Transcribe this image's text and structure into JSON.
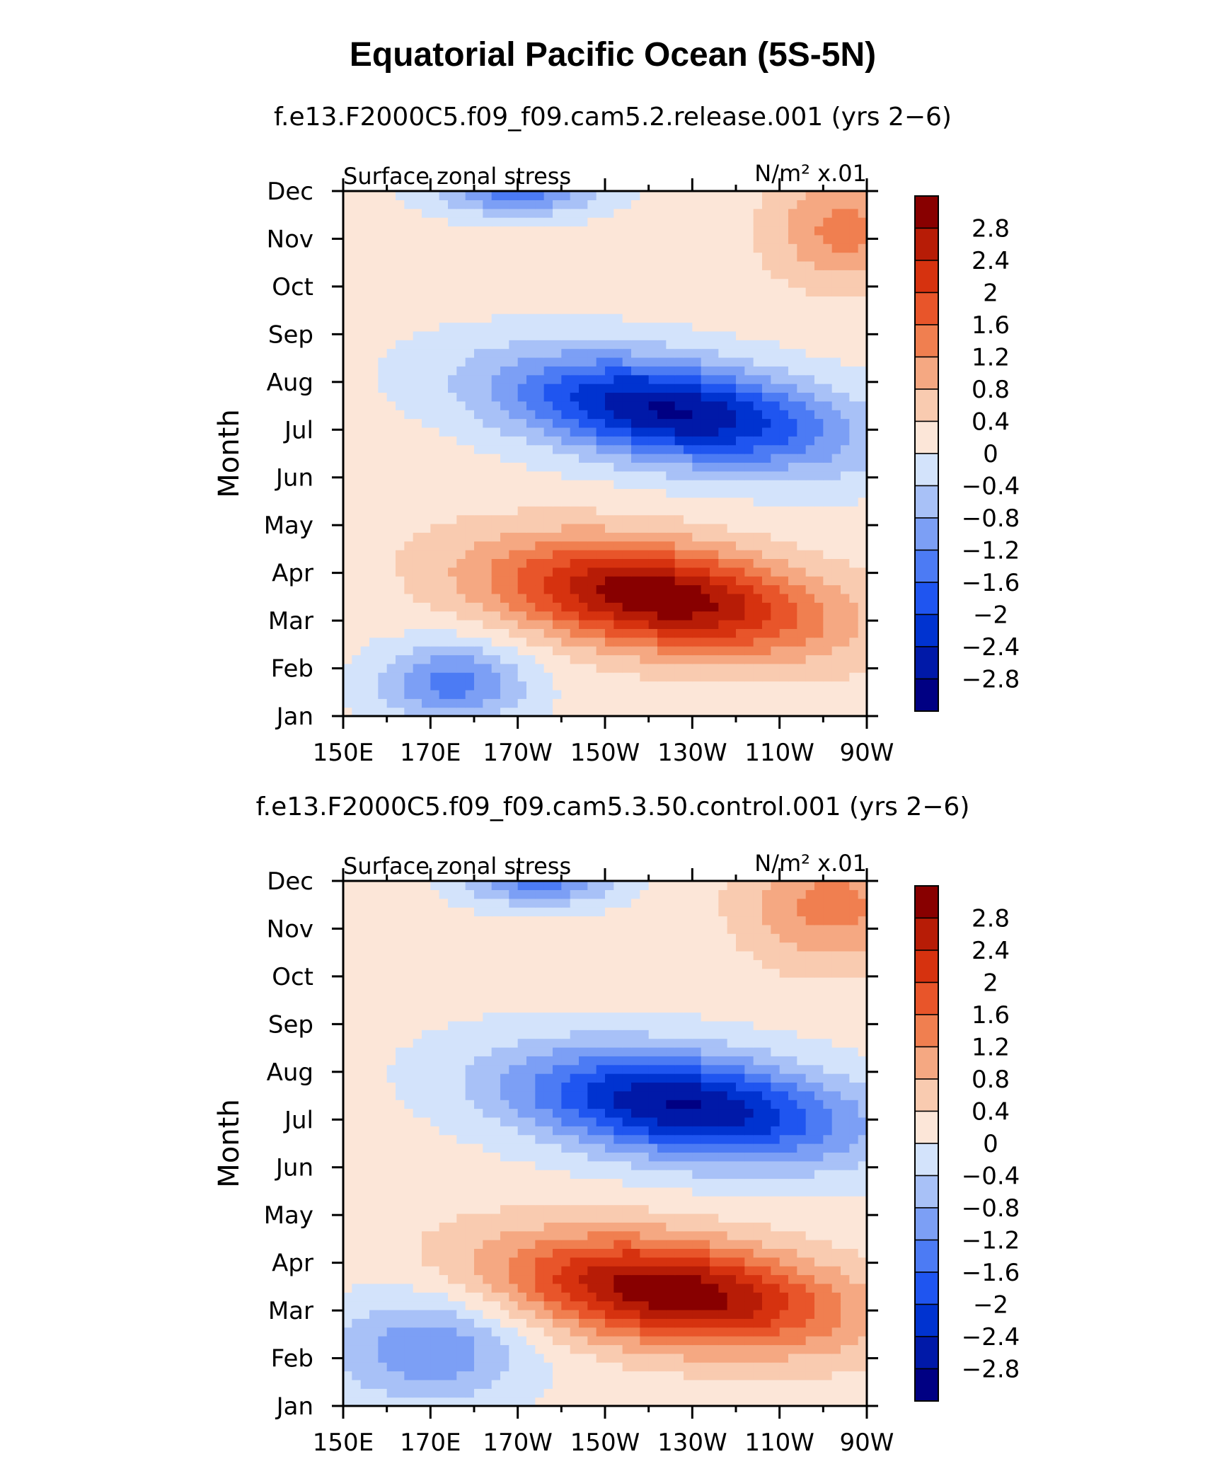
{
  "figure": {
    "title": "Equatorial Pacific Ocean (5S-5N)"
  },
  "chart_data": [
    {
      "type": "heatmap",
      "subtitle": "f.e13.F2000C5.f09_f09.cam5.2.release.001 (yrs 2−6)",
      "left_label": "Surface zonal stress",
      "right_label": "N/m² x.01",
      "xlabel": "",
      "ylabel": "Month",
      "x_ticks": [
        "150E",
        "170E",
        "170W",
        "150W",
        "130W",
        "110W",
        "90W"
      ],
      "y_ticks": [
        "Jan",
        "Feb",
        "Mar",
        "Apr",
        "May",
        "Jun",
        "Jul",
        "Aug",
        "Sep",
        "Oct",
        "Nov",
        "Dec"
      ],
      "xlim_deg_east": [
        150,
        270
      ],
      "colorbar_labels": [
        "2.8",
        "2.4",
        "2",
        "1.6",
        "1.2",
        "0.8",
        "0.4",
        "0",
        "−0.4",
        "−0.8",
        "−1.2",
        "−1.6",
        "−2",
        "−2.4",
        "−2.8"
      ],
      "features": [
        {
          "sign": "positive",
          "peak": 3.0,
          "lon": 222,
          "month": 3.5,
          "lon_half_width": 45,
          "month_half_width": 1.3,
          "tilt": -0.11
        },
        {
          "sign": "negative",
          "peak": -3.0,
          "lon": 225,
          "month": 7.4,
          "lon_half_width": 46,
          "month_half_width": 1.25,
          "tilt": -0.12
        },
        {
          "sign": "negative",
          "peak": -1.5,
          "lon": 175,
          "month": 1.7,
          "lon_half_width": 20,
          "month_half_width": 1.0,
          "tilt": 0
        },
        {
          "sign": "negative",
          "peak": -1.5,
          "lon": 190,
          "month": 12.0,
          "lon_half_width": 22,
          "month_half_width": 0.6,
          "tilt": 0
        },
        {
          "sign": "positive",
          "peak": 1.2,
          "lon": 265,
          "month": 11.2,
          "lon_half_width": 20,
          "month_half_width": 1.4,
          "tilt": 0
        }
      ]
    },
    {
      "type": "heatmap",
      "subtitle": "f.e13.F2000C5.f09_f09.cam5.3.50.control.001 (yrs 2−6)",
      "left_label": "Surface zonal stress",
      "right_label": "N/m² x.01",
      "xlabel": "",
      "ylabel": "Month",
      "x_ticks": [
        "150E",
        "170E",
        "170W",
        "150W",
        "130W",
        "110W",
        "90W"
      ],
      "y_ticks": [
        "Jan",
        "Feb",
        "Mar",
        "Apr",
        "May",
        "Jun",
        "Jul",
        "Aug",
        "Sep",
        "Oct",
        "Nov",
        "Dec"
      ],
      "xlim_deg_east": [
        150,
        270
      ],
      "colorbar_labels": [
        "2.8",
        "2.4",
        "2",
        "1.6",
        "1.2",
        "0.8",
        "0.4",
        "0",
        "−0.4",
        "−0.8",
        "−1.2",
        "−1.6",
        "−2",
        "−2.4",
        "−2.8"
      ],
      "features": [
        {
          "sign": "positive",
          "peak": 3.0,
          "lon": 225,
          "month": 3.4,
          "lon_half_width": 46,
          "month_half_width": 1.3,
          "tilt": -0.1
        },
        {
          "sign": "negative",
          "peak": -3.0,
          "lon": 228,
          "month": 7.3,
          "lon_half_width": 46,
          "month_half_width": 1.3,
          "tilt": -0.1
        },
        {
          "sign": "negative",
          "peak": -1.3,
          "lon": 170,
          "month": 2.2,
          "lon_half_width": 26,
          "month_half_width": 1.4,
          "tilt": 0
        },
        {
          "sign": "negative",
          "peak": -1.5,
          "lon": 195,
          "month": 12.0,
          "lon_half_width": 20,
          "month_half_width": 0.6,
          "tilt": 0
        },
        {
          "sign": "positive",
          "peak": 1.2,
          "lon": 262,
          "month": 11.5,
          "lon_half_width": 24,
          "month_half_width": 1.5,
          "tilt": 0
        }
      ]
    }
  ],
  "palette": {
    "levels_hex": [
      "#000083",
      "#0019A8",
      "#0033D0",
      "#1F55F0",
      "#4C7BF4",
      "#7C9FF5",
      "#A8C1F7",
      "#D3E3FB",
      "#FCE6D8",
      "#F9CBB0",
      "#F5A882",
      "#F07F50",
      "#E8552A",
      "#D6320F",
      "#B71C06",
      "#880000"
    ]
  }
}
